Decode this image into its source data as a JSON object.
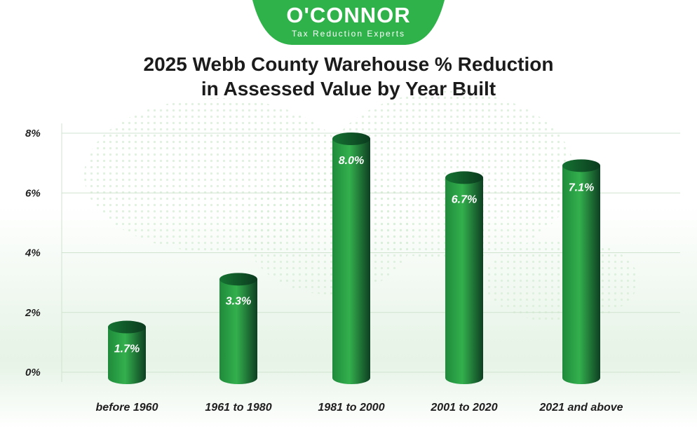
{
  "brand": {
    "name": "O'CONNOR",
    "tagline": "Tax Reduction Experts",
    "color": "#2fb24a"
  },
  "title_lines": [
    "2025 Webb County Warehouse % Reduction",
    "in Assessed Value by Year Built"
  ],
  "chart_data": {
    "type": "bar",
    "title": "2025 Webb County Warehouse % Reduction in Assessed Value by Year Built",
    "categories": [
      "before 1960",
      "1961 to 1980",
      "1981 to 2000",
      "2001 to 2020",
      "2021 and above"
    ],
    "values": [
      1.7,
      3.3,
      8.0,
      6.7,
      7.1
    ],
    "value_labels": [
      "1.7%",
      "3.3%",
      "8.0%",
      "6.7%",
      "7.1%"
    ],
    "yticks": [
      "0%",
      "2%",
      "4%",
      "6%",
      "8%"
    ],
    "ylim": [
      0,
      8
    ],
    "grid": true,
    "bar_style": "3d-cylinder",
    "bar_color": "#1e8f3e"
  }
}
